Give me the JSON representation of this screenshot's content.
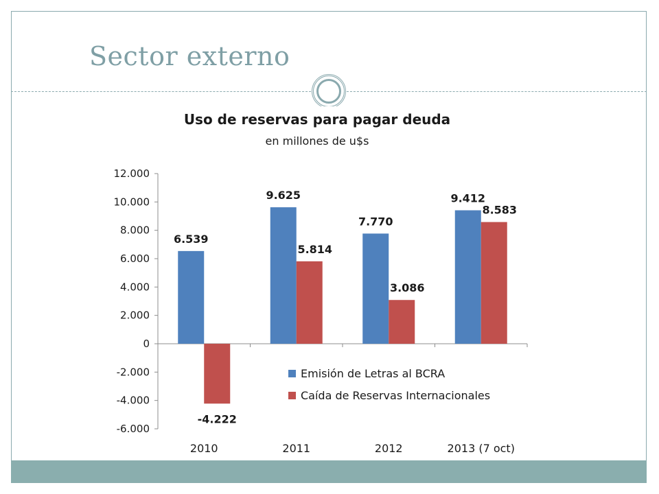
{
  "slide": {
    "title": "Sector externo"
  },
  "chart_data": {
    "type": "bar",
    "title": "Uso de reservas para pagar deuda",
    "subtitle": "en millones de u$s",
    "categories": [
      "2010",
      "2011",
      "2012",
      "2013 (7 oct)"
    ],
    "series": [
      {
        "name": "Emisión de Letras al BCRA",
        "values": [
          6539,
          9625,
          7770,
          9412
        ],
        "labels": [
          "6.539",
          "9.625",
          "7.770",
          "9.412"
        ],
        "color": "#4f81bd"
      },
      {
        "name": "Caída de Reservas Internacionales",
        "values": [
          -4222,
          5814,
          3086,
          8583
        ],
        "labels": [
          "-4.222",
          "5.814",
          "3.086",
          "8.583"
        ],
        "color": "#c0504d"
      }
    ],
    "ylim": [
      -6000,
      12000
    ],
    "yticks": [
      12000,
      10000,
      8000,
      6000,
      4000,
      2000,
      0,
      -2000,
      -4000,
      -6000
    ],
    "ytick_labels": [
      "12.000",
      "10.000",
      "8.000",
      "6.000",
      "4.000",
      "2.000",
      "0",
      "-2.000",
      "-4.000",
      "-6.000"
    ],
    "legend_position": "inside-bottom-right",
    "grid": false,
    "xlabel": "",
    "ylabel": ""
  }
}
